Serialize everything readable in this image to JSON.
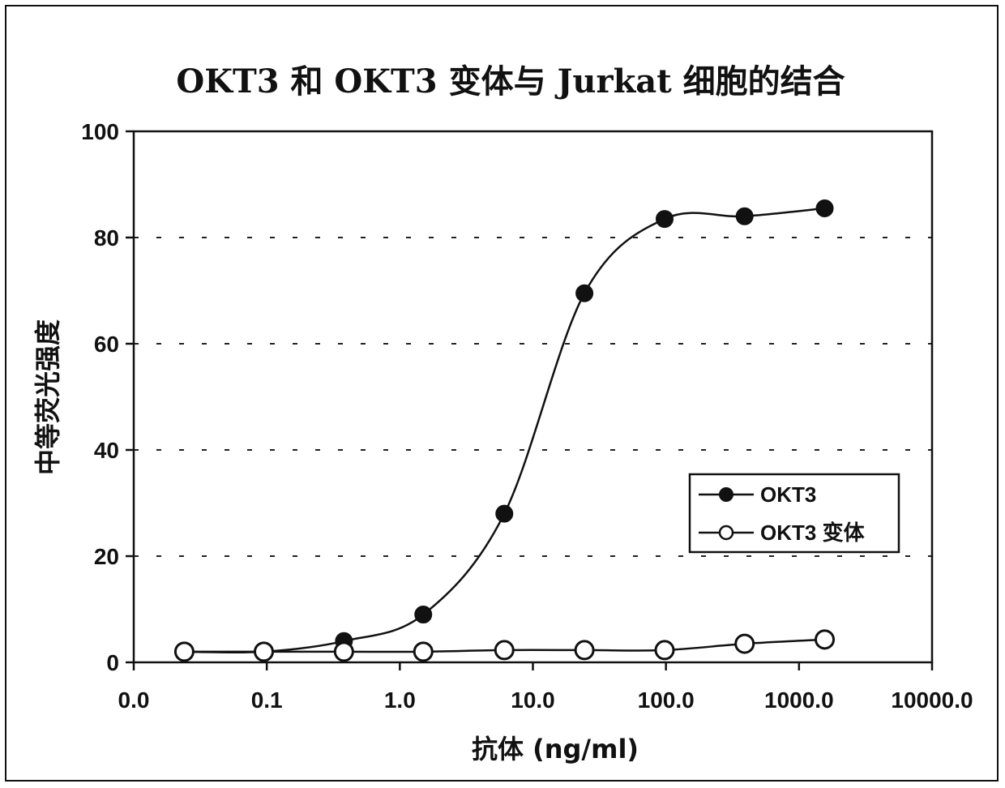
{
  "chart_data": {
    "type": "line",
    "title": "OKT3 和 OKT3 变体与 Jurkat 细胞的结合",
    "xlabel": "抗体 (ng/ml)",
    "ylabel": "中等荧光强度",
    "x_scale": "log",
    "x_tick_labels": [
      "0.0",
      "0.1",
      "1.0",
      "10.0",
      "100.0",
      "1000.0",
      "10000.0"
    ],
    "x_tick_values": [
      0.01,
      0.1,
      1,
      10,
      100,
      1000,
      10000
    ],
    "y_ticks": [
      0,
      20,
      40,
      60,
      80,
      100
    ],
    "ylim": [
      0,
      100
    ],
    "grid": true,
    "legend_position": "right-center",
    "series": [
      {
        "name": "OKT3",
        "marker": "filled-circle",
        "color": "#111111",
        "x": [
          0.024,
          0.095,
          0.38,
          1.5,
          6.1,
          24.4,
          97.7,
          390,
          1560
        ],
        "y": [
          2,
          2,
          4,
          9,
          28,
          69.5,
          83.5,
          84,
          85.5
        ]
      },
      {
        "name": "OKT3 变体",
        "marker": "open-circle",
        "color": "#111111",
        "x": [
          0.024,
          0.095,
          0.38,
          1.5,
          6.1,
          24.4,
          97.7,
          390,
          1560
        ],
        "y": [
          2,
          2,
          2,
          2,
          2.3,
          2.3,
          2.3,
          3.5,
          4.3
        ]
      }
    ]
  }
}
